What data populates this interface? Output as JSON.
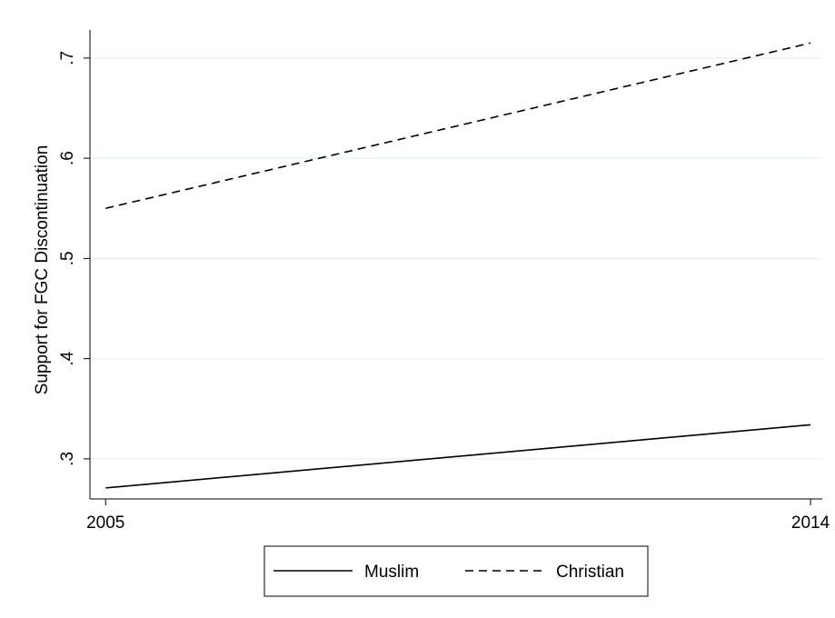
{
  "chart_data": {
    "type": "line",
    "title": "",
    "xlabel": "",
    "ylabel": "Support for FGC Discontinuation",
    "x": [
      2005,
      2014
    ],
    "x_tick_labels": [
      "2005",
      "2014"
    ],
    "xlim": [
      2004.8,
      2014.15
    ],
    "ylim": [
      0.26,
      0.728
    ],
    "y_ticks": [
      0.3,
      0.4,
      0.5,
      0.6,
      0.7
    ],
    "y_tick_labels": [
      ".3",
      ".4",
      ".5",
      ".6",
      ".7"
    ],
    "grid": true,
    "legend_position": "bottom",
    "series": [
      {
        "name": "Muslim",
        "values": [
          0.271,
          0.334
        ],
        "style": "solid",
        "color": "#000000"
      },
      {
        "name": "Christian",
        "values": [
          0.55,
          0.715
        ],
        "style": "dashed",
        "color": "#000000"
      }
    ]
  }
}
